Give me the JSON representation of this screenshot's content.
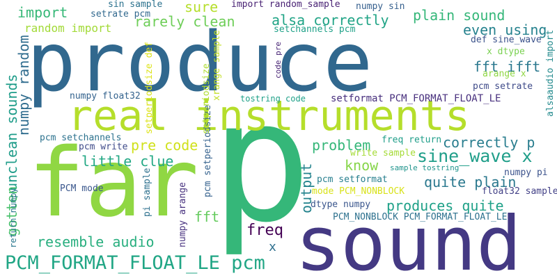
{
  "words": [
    {
      "text": "p",
      "color": "#35b779"
    },
    {
      "text": "produce",
      "color": "#31688e"
    },
    {
      "text": "sound",
      "color": "#443983"
    },
    {
      "text": "far",
      "color": "#90d743"
    },
    {
      "text": "real instruments",
      "color": "#b5de2b"
    },
    {
      "text": "PCM_FORMAT_FLOAT_LE pcm",
      "color": "#21a685"
    },
    {
      "text": "sine_wave x",
      "color": "#1f9e89"
    },
    {
      "text": "rarely clean",
      "color": "#6ece58"
    },
    {
      "text": "alsa correctly",
      "color": "#20a486"
    },
    {
      "text": "plain sound",
      "color": "#35b779"
    },
    {
      "text": "import",
      "color": "#37b878"
    },
    {
      "text": "sure",
      "color": "#b5de2b"
    },
    {
      "text": "even using",
      "color": "#26828e"
    },
    {
      "text": "fft ifft",
      "color": "#2a788e"
    },
    {
      "text": "unclean sounds",
      "color": "#1e9c89"
    },
    {
      "text": "numpy random",
      "color": "#2f6c8e"
    },
    {
      "text": "pre code",
      "color": "#d0e11c"
    },
    {
      "text": "correctly p",
      "color": "#287d8e"
    },
    {
      "text": "problem",
      "color": "#35b779"
    },
    {
      "text": "little clue",
      "color": "#22a884"
    },
    {
      "text": "quite plain",
      "color": "#2a788e"
    },
    {
      "text": "produces quite",
      "color": "#1fa188"
    },
    {
      "text": "know",
      "color": "#86d549"
    },
    {
      "text": "resemble audio",
      "color": "#29af7f"
    },
    {
      "text": "freq",
      "color": "#440154"
    },
    {
      "text": "output",
      "color": "#25848e"
    },
    {
      "text": "gotten",
      "color": "#4ac16d"
    },
    {
      "text": "fft",
      "color": "#65cb5e"
    },
    {
      "text": "random import",
      "color": "#a2da37"
    },
    {
      "text": "import random_sample",
      "color": "#482173"
    },
    {
      "text": "sin sample",
      "color": "#2c728e"
    },
    {
      "text": "setrate pcm",
      "color": "#31688e"
    },
    {
      "text": "numpy sin",
      "color": "#355f8d"
    },
    {
      "text": "setchannels pcm",
      "color": "#1fa188"
    },
    {
      "text": "def sine_wave",
      "color": "#3b528b"
    },
    {
      "text": "x dtype",
      "color": "#7ad151"
    },
    {
      "text": "arange x",
      "color": "#8fd744"
    },
    {
      "text": "alsaaudio import",
      "color": "#238a8d"
    },
    {
      "text": "pcm setrate",
      "color": "#3e4a89"
    },
    {
      "text": "setformat PCM_FORMAT_FLOAT_LE",
      "color": "#472f7d"
    },
    {
      "text": "tostring code",
      "color": "#1fa188"
    },
    {
      "text": "numpy float32",
      "color": "#33628d"
    },
    {
      "text": "pcm setchannels",
      "color": "#2c728e"
    },
    {
      "text": "pcm write",
      "color": "#3e4a89"
    },
    {
      "text": "freq return",
      "color": "#1f9e89"
    },
    {
      "text": "write sample",
      "color": "#a5db36"
    },
    {
      "text": "sample tostring",
      "color": "#1f948c"
    },
    {
      "text": "numpy pi",
      "color": "#3b528b"
    },
    {
      "text": "pcm setformat",
      "color": "#277f8e"
    },
    {
      "text": "mode PCM_NONBLOCK",
      "color": "#d8e219"
    },
    {
      "text": "float32 sample",
      "color": "#424086"
    },
    {
      "text": "dtype numpy",
      "color": "#39558c"
    },
    {
      "text": "PCM_NONBLOCK PCM_FORMAT_FLOAT_LE",
      "color": "#2d718e"
    },
    {
      "text": "PCM mode",
      "color": "#39568c"
    },
    {
      "text": "pi sample",
      "color": "#2d708e"
    },
    {
      "text": "return numpy",
      "color": "#2a778e"
    },
    {
      "text": "numpy arange",
      "color": "#46307e"
    },
    {
      "text": "pcm setperiodsize",
      "color": "#34618d"
    },
    {
      "text": "setperiodsize",
      "color": "#addc30"
    },
    {
      "text": "setperiodsize def",
      "color": "#dde318"
    },
    {
      "text": "xrange sample",
      "color": "#c2df23"
    },
    {
      "text": "code pre",
      "color": "#482475"
    },
    {
      "text": "x",
      "color": "#2e6f8e"
    }
  ]
}
